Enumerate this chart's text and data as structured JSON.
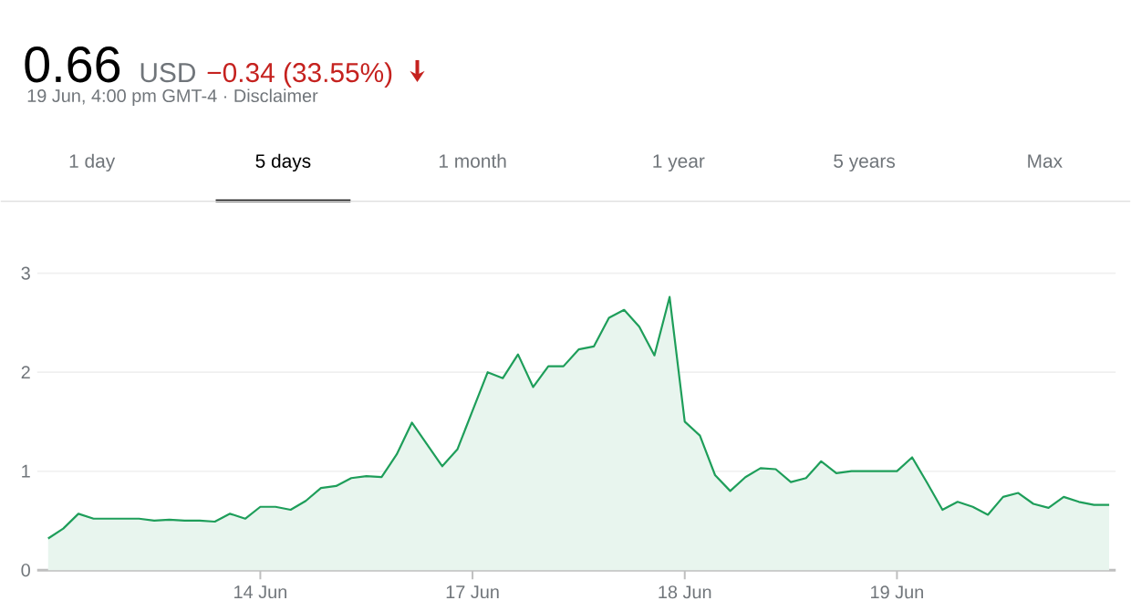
{
  "chart_data": {
    "type": "area",
    "title": "0.66",
    "annotations": [
      "USD",
      "−0.34 (33.55%)",
      "19 Jun, 4:00 pm GMT-4 · Disclaimer",
      "1 day",
      "5 days",
      "1 month",
      "1 year",
      "5 years",
      "Max"
    ],
    "categories": [
      null,
      null,
      null,
      null,
      null,
      null,
      null,
      null,
      null,
      null,
      null,
      null,
      null,
      null,
      "14 Jun",
      null,
      null,
      null,
      null,
      null,
      null,
      null,
      null,
      null,
      null,
      null,
      null,
      null,
      "17 Jun",
      null,
      null,
      null,
      null,
      null,
      null,
      null,
      null,
      null,
      null,
      null,
      null,
      null,
      "18 Jun",
      null,
      null,
      null,
      null,
      null,
      null,
      null,
      null,
      null,
      null,
      null,
      null,
      null,
      "19 Jun",
      null,
      null,
      null,
      null,
      null,
      null,
      null,
      null,
      null,
      null,
      null,
      null,
      null,
      null
    ],
    "series": [
      {
        "color": "#1e9e5a",
        "values": [
          0.32,
          0.42,
          0.57,
          0.52,
          0.52,
          0.52,
          0.52,
          0.5,
          0.51,
          0.5,
          0.5,
          0.49,
          0.57,
          0.52,
          0.64,
          0.64,
          0.61,
          0.7,
          0.83,
          0.85,
          0.93,
          0.95,
          0.94,
          1.17,
          1.49,
          1.27,
          1.05,
          1.22,
          1.61,
          2.0,
          1.94,
          2.18,
          1.85,
          2.06,
          2.06,
          2.23,
          2.26,
          2.55,
          2.63,
          2.46,
          2.17,
          2.76,
          1.5,
          1.36,
          0.96,
          0.8,
          0.94,
          1.03,
          1.02,
          0.89,
          0.93,
          1.1,
          0.98,
          1.0,
          1.0,
          1.0,
          1.0,
          1.14,
          0.88,
          0.61,
          0.69,
          0.64,
          0.56,
          0.74,
          0.78,
          0.67,
          0.63,
          0.74,
          0.69,
          0.66,
          0.66
        ]
      }
    ],
    "ylim": [
      0,
      3
    ],
    "yticks": [
      0,
      1,
      2,
      3
    ],
    "grid": "y"
  }
}
